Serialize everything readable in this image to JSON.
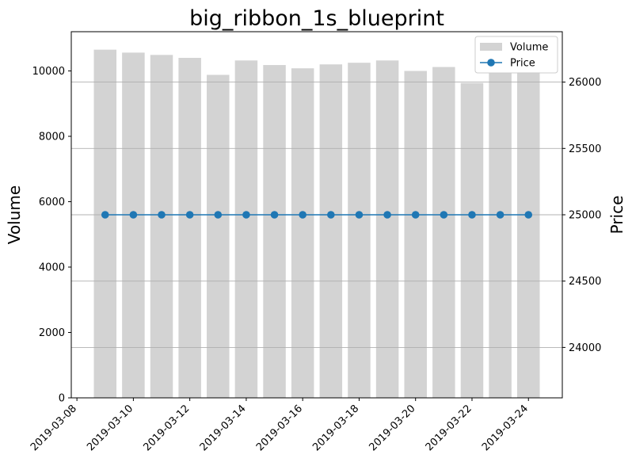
{
  "chart_data": {
    "type": "bar+line",
    "title": "big_ribbon_1s_blueprint",
    "ylabel_left": "Volume",
    "ylabel_right": "Price",
    "x": [
      "2019-03-09",
      "2019-03-10",
      "2019-03-11",
      "2019-03-12",
      "2019-03-13",
      "2019-03-14",
      "2019-03-15",
      "2019-03-16",
      "2019-03-17",
      "2019-03-18",
      "2019-03-19",
      "2019-03-20",
      "2019-03-21",
      "2019-03-22",
      "2019-03-23",
      "2019-03-24"
    ],
    "x_ticks": [
      "2019-03-08",
      "2019-03-10",
      "2019-03-12",
      "2019-03-14",
      "2019-03-16",
      "2019-03-18",
      "2019-03-20",
      "2019-03-22",
      "2019-03-24"
    ],
    "series": [
      {
        "name": "Volume",
        "type": "bar",
        "axis": "left",
        "color": "#d3d3d3",
        "values": [
          10650,
          10560,
          10490,
          10400,
          9880,
          10320,
          10180,
          10080,
          10200,
          10250,
          10320,
          10000,
          10120,
          9630,
          9950,
          9960
        ]
      },
      {
        "name": "Price",
        "type": "line",
        "axis": "right",
        "color": "#1f77b4",
        "marker": "circle",
        "values": [
          25000,
          25000,
          25000,
          25000,
          25000,
          25000,
          25000,
          25000,
          25000,
          25000,
          25000,
          25000,
          25000,
          25000,
          25000,
          25000
        ]
      }
    ],
    "ylim_left": [
      0,
      11200
    ],
    "yticks_left": [
      0,
      2000,
      4000,
      6000,
      8000,
      10000
    ],
    "ylim_right": [
      23620,
      26380
    ],
    "yticks_right": [
      24000,
      24500,
      25000,
      25500,
      26000
    ],
    "xlim": [
      "2019-03-07T19:12",
      "2019-03-25T04:48"
    ],
    "grid": "horizontal lines at right-axis ticks",
    "legend": {
      "placement": "upper right",
      "entries": [
        {
          "label": "Volume",
          "kind": "patch"
        },
        {
          "label": "Price",
          "kind": "line-marker"
        }
      ]
    }
  }
}
